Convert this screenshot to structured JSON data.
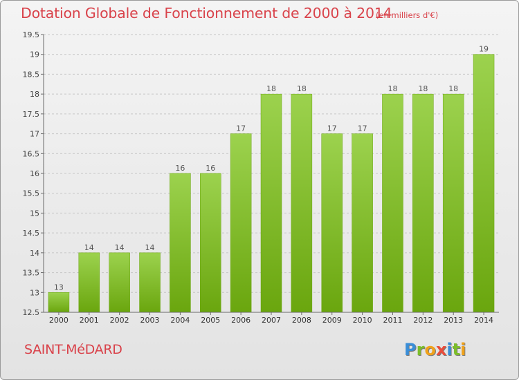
{
  "title": "Dotation Globale de Fonctionnement de 2000 à 2014",
  "unit_note": "(en milliers d'€)",
  "commune": "SAINT-MéDARD",
  "logo": "Proxiti",
  "colors": {
    "bar_top": "#9cd24e",
    "bar_bottom": "#6aa60e",
    "title": "#d9434b"
  },
  "chart_data": {
    "type": "bar",
    "title": "Dotation Globale de Fonctionnement de 2000 à 2014",
    "subtitle": "(en milliers d'€)",
    "categories": [
      "2000",
      "2001",
      "2002",
      "2003",
      "2004",
      "2005",
      "2006",
      "2007",
      "2008",
      "2009",
      "2010",
      "2011",
      "2012",
      "2013",
      "2014"
    ],
    "values": [
      13,
      14,
      14,
      14,
      16,
      16,
      17,
      18,
      18,
      17,
      17,
      18,
      18,
      18,
      19
    ],
    "data_labels": [
      "13",
      "14",
      "14",
      "14",
      "16",
      "16",
      "17",
      "18",
      "18",
      "17",
      "17",
      "18",
      "18",
      "18",
      "19"
    ],
    "ylim": [
      12.5,
      19.5
    ],
    "yticks": [
      12.5,
      13,
      13.5,
      14,
      14.5,
      15,
      15.5,
      16,
      16.5,
      17,
      17.5,
      18,
      18.5,
      19,
      19.5
    ],
    "ytick_labels": [
      "12.5",
      "13",
      "13.5",
      "14",
      "14.5",
      "15",
      "15.5",
      "16",
      "16.5",
      "17",
      "17.5",
      "18",
      "18.5",
      "19",
      "19.5"
    ],
    "grid": true,
    "legend": "none"
  }
}
